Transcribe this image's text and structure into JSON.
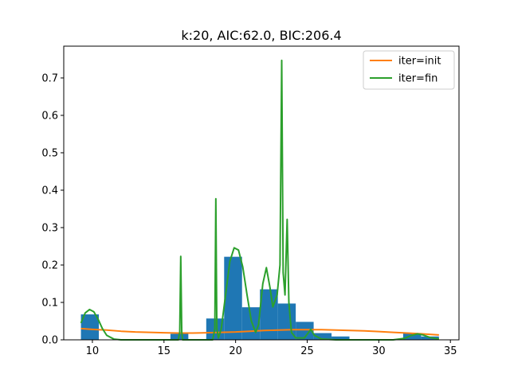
{
  "chart_data": {
    "type": "histogram+line",
    "title": "k:20, AIC:62.0, BIC:206.4",
    "xlim": [
      8.0,
      35.6
    ],
    "ylim": [
      0.0,
      0.785
    ],
    "x_ticks": [
      10,
      15,
      20,
      25,
      30,
      35
    ],
    "y_ticks": [
      0.0,
      0.1,
      0.2,
      0.3,
      0.4,
      0.5,
      0.6,
      0.7
    ],
    "legend": {
      "position": "top-right"
    },
    "bar_color": "#1f77b4",
    "histogram": [
      {
        "x0": 9.2,
        "x1": 10.45,
        "value": 0.068
      },
      {
        "x0": 15.45,
        "x1": 16.7,
        "value": 0.016
      },
      {
        "x0": 17.95,
        "x1": 19.2,
        "value": 0.057
      },
      {
        "x0": 19.2,
        "x1": 20.45,
        "value": 0.222
      },
      {
        "x0": 20.45,
        "x1": 21.7,
        "value": 0.087
      },
      {
        "x0": 21.7,
        "x1": 22.95,
        "value": 0.135
      },
      {
        "x0": 22.95,
        "x1": 24.2,
        "value": 0.097
      },
      {
        "x0": 24.2,
        "x1": 25.45,
        "value": 0.048
      },
      {
        "x0": 25.45,
        "x1": 26.7,
        "value": 0.018
      },
      {
        "x0": 26.7,
        "x1": 27.95,
        "value": 0.009
      },
      {
        "x0": 31.7,
        "x1": 32.95,
        "value": 0.018
      },
      {
        "x0": 32.95,
        "x1": 34.2,
        "value": 0.009
      }
    ],
    "series": [
      {
        "name": "iter=init",
        "color": "#ff7f0e",
        "points": [
          [
            9.2,
            0.03
          ],
          [
            10.0,
            0.028
          ],
          [
            11.0,
            0.026
          ],
          [
            12.0,
            0.023
          ],
          [
            13.0,
            0.021
          ],
          [
            14.0,
            0.02
          ],
          [
            15.0,
            0.019
          ],
          [
            16.0,
            0.018
          ],
          [
            17.0,
            0.018
          ],
          [
            18.0,
            0.019
          ],
          [
            19.0,
            0.02
          ],
          [
            20.0,
            0.021
          ],
          [
            21.0,
            0.023
          ],
          [
            22.0,
            0.025
          ],
          [
            23.0,
            0.026
          ],
          [
            24.0,
            0.027
          ],
          [
            25.0,
            0.027
          ],
          [
            26.0,
            0.027
          ],
          [
            27.0,
            0.026
          ],
          [
            28.0,
            0.025
          ],
          [
            29.0,
            0.024
          ],
          [
            30.0,
            0.022
          ],
          [
            31.0,
            0.02
          ],
          [
            32.0,
            0.018
          ],
          [
            33.0,
            0.016
          ],
          [
            34.2,
            0.013
          ]
        ]
      },
      {
        "name": "iter=fin",
        "color": "#2ca02c",
        "points": [
          [
            9.2,
            0.045
          ],
          [
            9.5,
            0.072
          ],
          [
            9.8,
            0.081
          ],
          [
            10.1,
            0.075
          ],
          [
            10.4,
            0.055
          ],
          [
            10.7,
            0.03
          ],
          [
            11.0,
            0.012
          ],
          [
            11.5,
            0.002
          ],
          [
            12.0,
            0.0
          ],
          [
            15.0,
            0.0
          ],
          [
            16.0,
            0.0
          ],
          [
            16.1,
            0.02
          ],
          [
            16.17,
            0.223
          ],
          [
            16.24,
            0.02
          ],
          [
            16.3,
            0.0
          ],
          [
            18.4,
            0.0
          ],
          [
            18.55,
            0.03
          ],
          [
            18.62,
            0.377
          ],
          [
            18.69,
            0.03
          ],
          [
            18.8,
            0.005
          ],
          [
            19.0,
            0.03
          ],
          [
            19.3,
            0.12
          ],
          [
            19.6,
            0.21
          ],
          [
            19.9,
            0.246
          ],
          [
            20.2,
            0.24
          ],
          [
            20.5,
            0.195
          ],
          [
            20.8,
            0.12
          ],
          [
            21.1,
            0.05
          ],
          [
            21.4,
            0.02
          ],
          [
            21.6,
            0.04
          ],
          [
            21.9,
            0.15
          ],
          [
            22.15,
            0.193
          ],
          [
            22.4,
            0.14
          ],
          [
            22.6,
            0.088
          ],
          [
            22.9,
            0.12
          ],
          [
            23.1,
            0.2
          ],
          [
            23.22,
            0.747
          ],
          [
            23.32,
            0.18
          ],
          [
            23.45,
            0.12
          ],
          [
            23.6,
            0.322
          ],
          [
            23.72,
            0.1
          ],
          [
            23.9,
            0.02
          ],
          [
            24.2,
            0.005
          ],
          [
            24.8,
            0.005
          ],
          [
            25.1,
            0.02
          ],
          [
            25.25,
            0.028
          ],
          [
            25.5,
            0.012
          ],
          [
            26.0,
            0.002
          ],
          [
            27.0,
            0.0
          ],
          [
            31.0,
            0.0
          ],
          [
            31.8,
            0.004
          ],
          [
            32.3,
            0.012
          ],
          [
            32.7,
            0.016
          ],
          [
            33.1,
            0.013
          ],
          [
            33.6,
            0.006
          ],
          [
            34.2,
            0.002
          ]
        ]
      }
    ]
  }
}
